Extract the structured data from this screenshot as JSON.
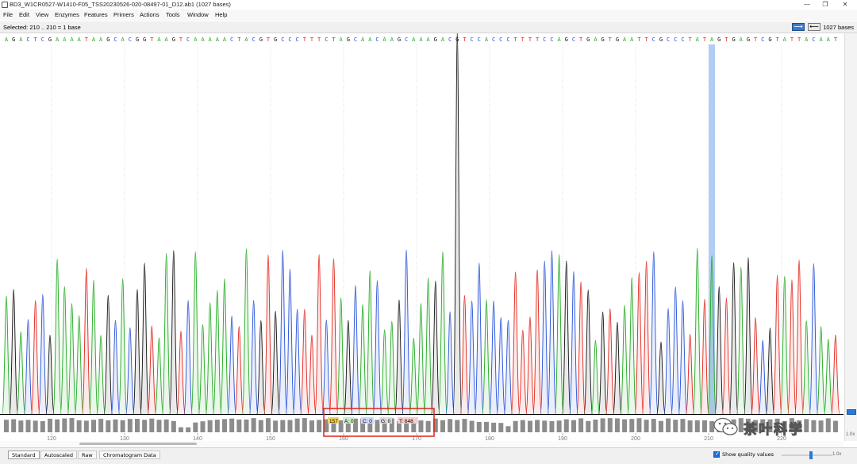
{
  "window": {
    "title": "BD3_W1CR0527-W1410-F05_TSS20230526-020-08497-01_D12.ab1  (1027 bases)",
    "minimize_glyph": "—",
    "maximize_glyph": "❐",
    "close_glyph": "✕"
  },
  "menu": [
    "File",
    "Edit",
    "View",
    "Enzymes",
    "Features",
    "Primers",
    "Actions",
    "Tools",
    "Window",
    "Help"
  ],
  "status": {
    "selected": "Selected: 210 .. 210 = 1 base",
    "bases": "1027 bases",
    "forward_glyph": "⟶",
    "reverse_glyph": "⟵"
  },
  "sequence": "AGACTCGAAAATAAGCACGGTAAGTCAAAAACTACGTGCCCTTTCTAGCAACAAGCAAAGACGTCCACCCTTTTCCAGCTGAGTGAATTCGCCCTATAGTGAGTCGTATTACAAT",
  "base_colors": {
    "A": "#1faa1f",
    "C": "#2450d8",
    "G": "#111111",
    "T": "#e2231a"
  },
  "highlight_color": "#a9c8f2",
  "axis": {
    "ticks": [
      "120",
      "130",
      "140",
      "150",
      "160",
      "170",
      "180",
      "190",
      "200",
      "210",
      "220"
    ]
  },
  "tooltip": {
    "pos": "157",
    "a": "A: 0",
    "c": "C: 0",
    "g": "G: 0",
    "t": "T: 648"
  },
  "tabs": [
    "Standard",
    "Autoscaled",
    "Raw",
    "Chromatogram Data"
  ],
  "show_quality_label": "Show quality values",
  "zoom_label": "1.0x",
  "watermark": {
    "text": "茶叶科学"
  }
}
